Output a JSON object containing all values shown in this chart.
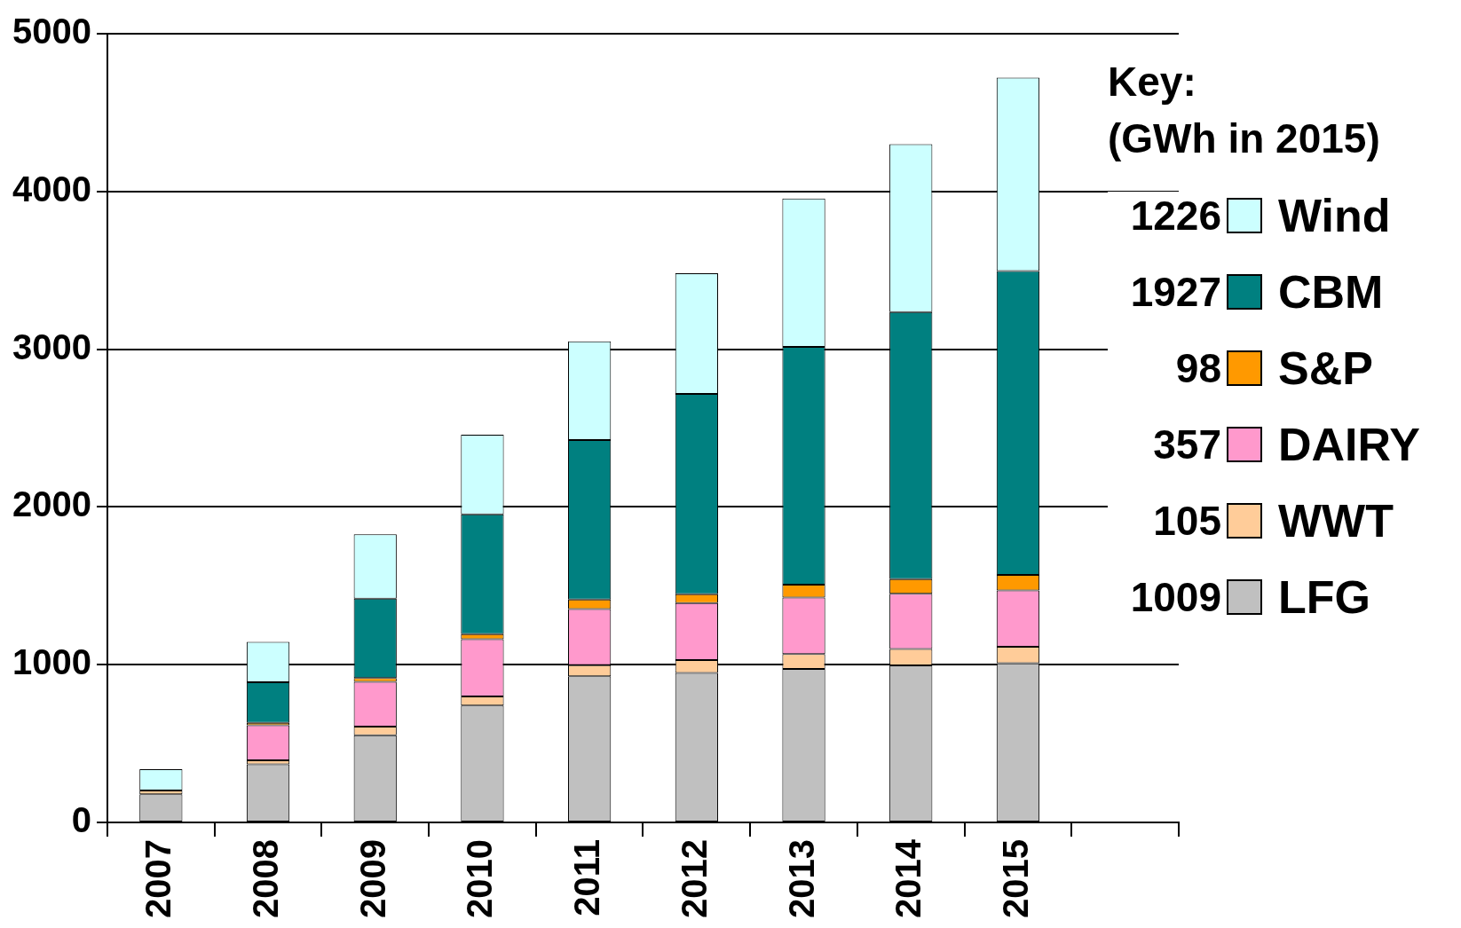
{
  "chart_data": {
    "type": "bar",
    "stacked": true,
    "legend_title": "Key:\n(GWh in 2015)",
    "categories": [
      "2007",
      "2008",
      "2009",
      "2010",
      "2011",
      "2012",
      "2013",
      "2014",
      "2015",
      null
    ],
    "series": [
      {
        "name": "LFG",
        "color": "#c0c0c0",
        "values": [
          178,
          369,
          552,
          741,
          927,
          948,
          973,
          995,
          1009,
          null
        ]
      },
      {
        "name": "WWT",
        "color": "#ffcc99",
        "values": [
          25,
          25,
          55,
          58,
          70,
          82,
          94,
          105,
          105,
          null
        ]
      },
      {
        "name": "DAIRY",
        "color": "#ff99cc",
        "values": [
          0,
          222,
          285,
          362,
          356,
          361,
          359,
          350,
          357,
          null
        ]
      },
      {
        "name": "S&P",
        "color": "#ff9900",
        "values": [
          0,
          15,
          23,
          33,
          60,
          56,
          81,
          92,
          98,
          null
        ]
      },
      {
        "name": "CBM",
        "color": "#008080",
        "values": [
          0,
          258,
          504,
          759,
          1011,
          1269,
          1507,
          1694,
          1927,
          null
        ]
      },
      {
        "name": "Wind",
        "color": "#ccffff",
        "values": [
          134,
          256,
          407,
          505,
          626,
          765,
          942,
          1064,
          1226,
          null
        ]
      }
    ],
    "annotations": [
      "1009",
      "105",
      "357",
      "98",
      "1927",
      "1226"
    ],
    "ylim": [
      0,
      5000
    ],
    "yticks": [
      0,
      1000,
      2000,
      3000,
      4000,
      5000
    ],
    "grid": "y",
    "legend": "right"
  }
}
